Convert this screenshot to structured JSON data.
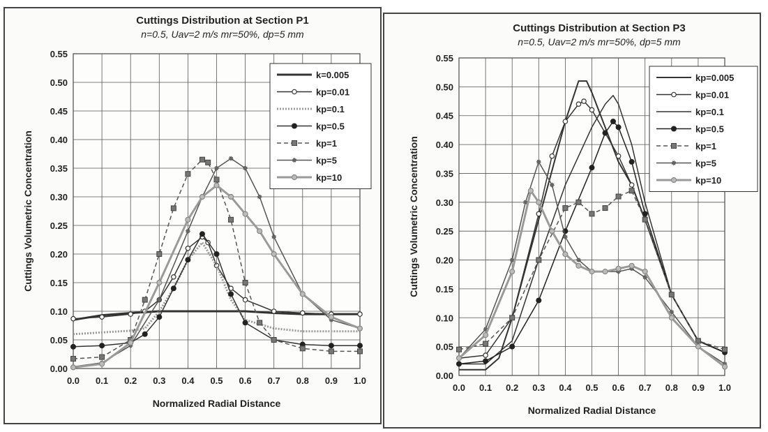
{
  "chart_data": [
    {
      "type": "line",
      "title": "Cuttings Distribution at Section P1",
      "subtitle": "n=0.5, Uav=2 m/s  mr=50%, dp=5 mm",
      "xlabel": "Normalized Radial Distance",
      "ylabel": "Cuttings Volumetric Concentration",
      "xlim": [
        0,
        1
      ],
      "ylim": [
        0,
        0.55
      ],
      "x_ticks": [
        "0.0",
        "0.1",
        "0.2",
        "0.3",
        "0.4",
        "0.5",
        "0.6",
        "0.7",
        "0.8",
        "0.9",
        "1.0"
      ],
      "y_ticks": [
        "0.00",
        "0.05",
        "0.10",
        "0.15",
        "0.20",
        "0.25",
        "0.30",
        "0.35",
        "0.40",
        "0.45",
        "0.50",
        "0.55"
      ],
      "grid": true,
      "legend_position": "top-right",
      "series": [
        {
          "name": "k=0.005",
          "marker": "none",
          "dash": "",
          "color": "#333333",
          "width": 3,
          "x": [
            0,
            0.1,
            0.2,
            0.3,
            0.4,
            0.5,
            0.6,
            0.7,
            0.8,
            0.9,
            1.0
          ],
          "y": [
            0.085,
            0.093,
            0.097,
            0.1,
            0.1,
            0.1,
            0.1,
            0.097,
            0.095,
            0.095,
            0.095
          ]
        },
        {
          "name": "kp=0.01",
          "marker": "circle-open",
          "dash": "",
          "color": "#333333",
          "width": 1.5,
          "x": [
            0,
            0.1,
            0.2,
            0.25,
            0.3,
            0.35,
            0.4,
            0.45,
            0.47,
            0.5,
            0.55,
            0.6,
            0.7,
            0.8,
            0.9,
            1.0
          ],
          "y": [
            0.087,
            0.09,
            0.095,
            0.1,
            0.12,
            0.16,
            0.21,
            0.23,
            0.22,
            0.18,
            0.14,
            0.12,
            0.1,
            0.097,
            0.095,
            0.095
          ]
        },
        {
          "name": "kp=0.1",
          "marker": "none",
          "dash": "2,2",
          "color": "#9a9a9a",
          "width": 3,
          "x": [
            0,
            0.1,
            0.2,
            0.25,
            0.3,
            0.35,
            0.4,
            0.45,
            0.5,
            0.55,
            0.6,
            0.7,
            0.8,
            0.9,
            1.0
          ],
          "y": [
            0.06,
            0.063,
            0.066,
            0.07,
            0.1,
            0.14,
            0.19,
            0.22,
            0.18,
            0.12,
            0.085,
            0.07,
            0.065,
            0.065,
            0.065
          ]
        },
        {
          "name": "kp=0.5",
          "marker": "circle-filled",
          "dash": "",
          "color": "#333333",
          "width": 1.5,
          "x": [
            0,
            0.1,
            0.2,
            0.25,
            0.3,
            0.35,
            0.4,
            0.45,
            0.5,
            0.55,
            0.6,
            0.7,
            0.8,
            0.9,
            1.0
          ],
          "y": [
            0.038,
            0.04,
            0.045,
            0.06,
            0.09,
            0.14,
            0.19,
            0.235,
            0.2,
            0.13,
            0.08,
            0.05,
            0.042,
            0.04,
            0.04
          ]
        },
        {
          "name": "kp=1",
          "marker": "square",
          "dash": "6,4",
          "color": "#555555",
          "width": 1.5,
          "x": [
            0,
            0.1,
            0.2,
            0.25,
            0.3,
            0.35,
            0.4,
            0.45,
            0.47,
            0.5,
            0.55,
            0.6,
            0.65,
            0.7,
            0.8,
            0.9,
            1.0
          ],
          "y": [
            0.017,
            0.02,
            0.05,
            0.12,
            0.2,
            0.28,
            0.34,
            0.365,
            0.36,
            0.33,
            0.26,
            0.15,
            0.08,
            0.05,
            0.035,
            0.03,
            0.03
          ]
        },
        {
          "name": "kp=5",
          "marker": "star",
          "dash": "",
          "color": "#555555",
          "width": 1.5,
          "x": [
            0,
            0.1,
            0.2,
            0.3,
            0.4,
            0.45,
            0.5,
            0.55,
            0.6,
            0.65,
            0.7,
            0.8,
            0.9,
            1.0
          ],
          "y": [
            0.003,
            0.01,
            0.04,
            0.12,
            0.24,
            0.3,
            0.35,
            0.367,
            0.35,
            0.3,
            0.23,
            0.13,
            0.085,
            0.07
          ]
        },
        {
          "name": "kp=10",
          "marker": "circle-gray",
          "dash": "",
          "color": "#9a9a9a",
          "width": 3,
          "x": [
            0,
            0.1,
            0.2,
            0.3,
            0.4,
            0.45,
            0.5,
            0.55,
            0.6,
            0.65,
            0.7,
            0.8,
            0.9,
            1.0
          ],
          "y": [
            0.002,
            0.008,
            0.045,
            0.15,
            0.26,
            0.3,
            0.32,
            0.3,
            0.27,
            0.24,
            0.2,
            0.13,
            0.09,
            0.07
          ]
        }
      ]
    },
    {
      "type": "line",
      "title": "Cuttings Distribution at Section P3",
      "subtitle": "n=0.5, Uav=2 m/s  mr=50%, dp=5 mm",
      "xlabel": "Normalized Radial Distance",
      "ylabel": "Cuttings Volumetric Concentration",
      "xlim": [
        0,
        1
      ],
      "ylim": [
        0,
        0.55
      ],
      "x_ticks": [
        "0.0",
        "0.1",
        "0.2",
        "0.3",
        "0.4",
        "0.5",
        "0.6",
        "0.7",
        "0.8",
        "0.9",
        "1.0"
      ],
      "y_ticks": [
        "0.00",
        "0.05",
        "0.10",
        "0.15",
        "0.20",
        "0.25",
        "0.30",
        "0.35",
        "0.40",
        "0.45",
        "0.50",
        "0.55"
      ],
      "grid": true,
      "legend_position": "top-right",
      "series": [
        {
          "name": "kp=0.005",
          "marker": "none",
          "dash": "",
          "color": "#333333",
          "width": 2,
          "x": [
            0,
            0.1,
            0.15,
            0.2,
            0.3,
            0.4,
            0.45,
            0.48,
            0.5,
            0.55,
            0.6,
            0.65,
            0.7,
            0.8,
            0.9,
            1.0
          ],
          "y": [
            0.01,
            0.01,
            0.03,
            0.1,
            0.27,
            0.44,
            0.51,
            0.51,
            0.49,
            0.43,
            0.37,
            0.33,
            0.27,
            0.14,
            0.06,
            0.04
          ]
        },
        {
          "name": "kp=0.01",
          "marker": "circle-open",
          "dash": "",
          "color": "#333333",
          "width": 1.5,
          "x": [
            0,
            0.1,
            0.2,
            0.3,
            0.35,
            0.4,
            0.45,
            0.47,
            0.5,
            0.55,
            0.6,
            0.65,
            0.7,
            0.8,
            0.9,
            1.0
          ],
          "y": [
            0.03,
            0.035,
            0.1,
            0.28,
            0.38,
            0.44,
            0.47,
            0.475,
            0.46,
            0.42,
            0.38,
            0.33,
            0.27,
            0.14,
            0.06,
            0.04
          ]
        },
        {
          "name": "kp=0.1",
          "marker": "none",
          "dash": "",
          "color": "#333333",
          "width": 1.5,
          "x": [
            0,
            0.1,
            0.2,
            0.3,
            0.4,
            0.5,
            0.55,
            0.58,
            0.6,
            0.65,
            0.7,
            0.8,
            0.9,
            1.0
          ],
          "y": [
            0.02,
            0.02,
            0.06,
            0.2,
            0.33,
            0.43,
            0.47,
            0.485,
            0.47,
            0.4,
            0.3,
            0.14,
            0.06,
            0.04
          ]
        },
        {
          "name": "kp=0.5",
          "marker": "circle-filled",
          "dash": "",
          "color": "#222222",
          "width": 1.5,
          "x": [
            0,
            0.1,
            0.2,
            0.3,
            0.4,
            0.5,
            0.55,
            0.58,
            0.6,
            0.65,
            0.7,
            0.8,
            0.9,
            1.0
          ],
          "y": [
            0.02,
            0.025,
            0.05,
            0.13,
            0.25,
            0.36,
            0.42,
            0.44,
            0.43,
            0.37,
            0.28,
            0.14,
            0.06,
            0.04
          ]
        },
        {
          "name": "kp=1",
          "marker": "square",
          "dash": "6,4",
          "color": "#555555",
          "width": 1.5,
          "x": [
            0,
            0.1,
            0.2,
            0.3,
            0.4,
            0.45,
            0.5,
            0.55,
            0.6,
            0.65,
            0.7,
            0.8,
            0.9,
            1.0
          ],
          "y": [
            0.045,
            0.055,
            0.1,
            0.2,
            0.29,
            0.3,
            0.28,
            0.29,
            0.31,
            0.32,
            0.27,
            0.14,
            0.06,
            0.045
          ]
        },
        {
          "name": "kp=5",
          "marker": "star",
          "dash": "",
          "color": "#555555",
          "width": 1.5,
          "x": [
            0,
            0.1,
            0.2,
            0.25,
            0.3,
            0.35,
            0.4,
            0.45,
            0.5,
            0.55,
            0.6,
            0.65,
            0.7,
            0.8,
            0.9,
            1.0
          ],
          "y": [
            0.03,
            0.08,
            0.2,
            0.3,
            0.37,
            0.33,
            0.24,
            0.2,
            0.18,
            0.18,
            0.18,
            0.185,
            0.17,
            0.11,
            0.05,
            0.02
          ]
        },
        {
          "name": "kp=10",
          "marker": "circle-gray",
          "dash": "",
          "color": "#9a9a9a",
          "width": 3,
          "x": [
            0,
            0.1,
            0.2,
            0.27,
            0.3,
            0.35,
            0.4,
            0.45,
            0.5,
            0.55,
            0.6,
            0.65,
            0.7,
            0.8,
            0.9,
            1.0
          ],
          "y": [
            0.03,
            0.07,
            0.18,
            0.32,
            0.3,
            0.25,
            0.21,
            0.19,
            0.18,
            0.18,
            0.185,
            0.19,
            0.18,
            0.1,
            0.05,
            0.015
          ]
        }
      ]
    }
  ]
}
